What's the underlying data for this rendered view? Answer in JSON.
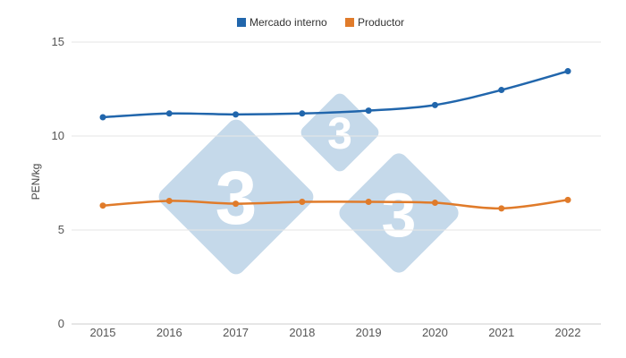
{
  "chart_data": {
    "type": "line",
    "x": [
      2015,
      2016,
      2017,
      2018,
      2019,
      2020,
      2021,
      2022
    ],
    "series": [
      {
        "name": "Mercado interno",
        "color": "#2166ac",
        "values": [
          11.0,
          11.2,
          11.15,
          11.2,
          11.35,
          11.65,
          12.45,
          13.45
        ]
      },
      {
        "name": "Productor",
        "color": "#e07b2a",
        "values": [
          6.3,
          6.55,
          6.4,
          6.5,
          6.5,
          6.45,
          6.15,
          6.6
        ]
      }
    ],
    "title": "",
    "xlabel": "",
    "ylabel": "PEN/kg",
    "ylim": [
      0,
      15
    ],
    "yticks": [
      0,
      5,
      10,
      15
    ],
    "grid": true,
    "legend": "top-center"
  },
  "watermark": {
    "text": "3",
    "color": "#c5d9ea"
  }
}
